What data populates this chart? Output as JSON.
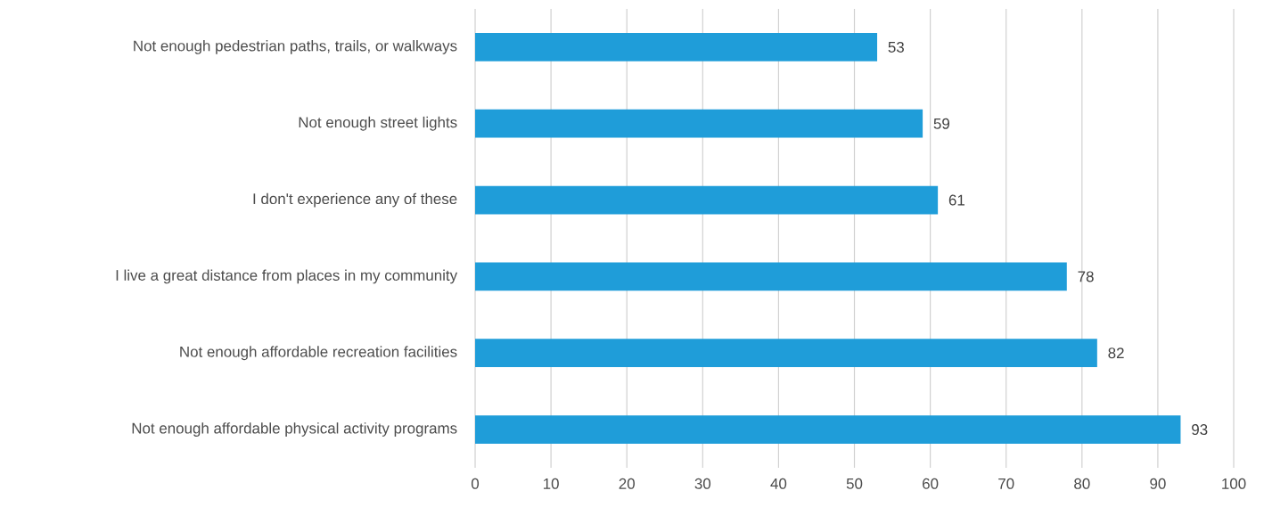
{
  "chart_data": {
    "type": "bar",
    "orientation": "horizontal",
    "categories": [
      "Not enough pedestrian paths, trails, or walkways",
      "Not enough street lights",
      "I don't experience any of these",
      "I live a great distance from places in my community",
      "Not enough affordable recreation facilities",
      "Not enough affordable physical activity programs"
    ],
    "values": [
      53,
      59,
      61,
      78,
      82,
      93
    ],
    "color": "#1f9dd9",
    "xlim": [
      0,
      100
    ],
    "xticks": [
      0,
      10,
      20,
      30,
      40,
      50,
      60,
      70,
      80,
      90,
      100
    ],
    "grid": "x",
    "data_labels": true
  }
}
